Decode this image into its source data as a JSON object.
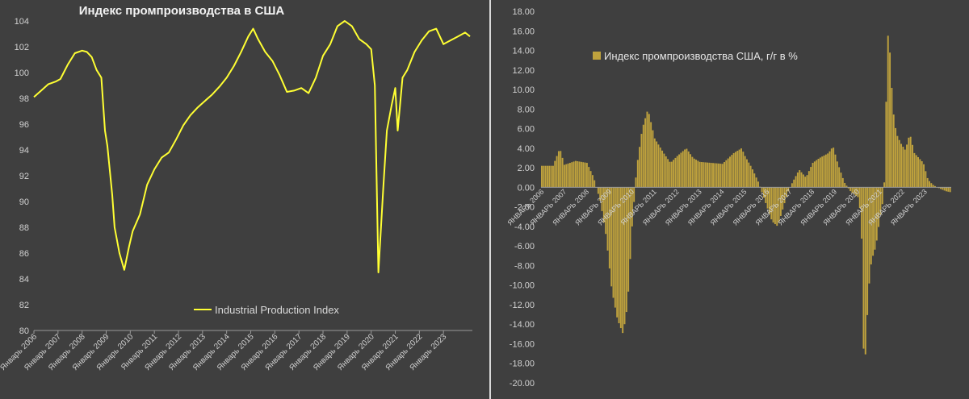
{
  "chart_data": [
    {
      "type": "line",
      "title": "Индекс промпроизводства в США",
      "legend": {
        "label": "Industrial Production Index",
        "position": "bottom-center"
      },
      "grid": false,
      "line_color": "#ffff33",
      "ylim": [
        80,
        104
      ],
      "yticks": [
        "80",
        "82",
        "84",
        "86",
        "88",
        "90",
        "92",
        "94",
        "96",
        "98",
        "100",
        "102",
        "104"
      ],
      "xlim": [
        2006.0,
        2024.2
      ],
      "xticks": [
        "Январь 2006",
        "Январь 2007",
        "Январь 2008",
        "Январь 2009",
        "Январь 2010",
        "Январь 2011",
        "Январь 2012",
        "Январь 2013",
        "Январь 2014",
        "Январь 2015",
        "Январь 2016",
        "Январь 2017",
        "Январь 2018",
        "Январь 2019",
        "Январь 2020",
        "Январь 2021",
        "Январь 2022",
        "Январь 2023"
      ],
      "points": [
        [
          2006.0,
          98.1
        ],
        [
          2006.3,
          98.6
        ],
        [
          2006.6,
          99.1
        ],
        [
          2006.9,
          99.3
        ],
        [
          2007.1,
          99.5
        ],
        [
          2007.4,
          100.6
        ],
        [
          2007.7,
          101.5
        ],
        [
          2008.0,
          101.7
        ],
        [
          2008.2,
          101.6
        ],
        [
          2008.4,
          101.2
        ],
        [
          2008.6,
          100.2
        ],
        [
          2008.8,
          99.6
        ],
        [
          2008.95,
          95.5
        ],
        [
          2009.05,
          94.3
        ],
        [
          2009.25,
          90.5
        ],
        [
          2009.35,
          88.0
        ],
        [
          2009.55,
          86.0
        ],
        [
          2009.75,
          84.7
        ],
        [
          2009.95,
          86.5
        ],
        [
          2010.1,
          87.7
        ],
        [
          2010.4,
          89.0
        ],
        [
          2010.7,
          91.3
        ],
        [
          2011.0,
          92.5
        ],
        [
          2011.3,
          93.4
        ],
        [
          2011.6,
          93.8
        ],
        [
          2011.9,
          94.8
        ],
        [
          2012.2,
          95.9
        ],
        [
          2012.5,
          96.7
        ],
        [
          2012.8,
          97.3
        ],
        [
          2013.1,
          97.8
        ],
        [
          2013.4,
          98.3
        ],
        [
          2013.7,
          98.9
        ],
        [
          2014.0,
          99.6
        ],
        [
          2014.3,
          100.5
        ],
        [
          2014.6,
          101.6
        ],
        [
          2014.9,
          102.8
        ],
        [
          2015.1,
          103.4
        ],
        [
          2015.3,
          102.6
        ],
        [
          2015.6,
          101.6
        ],
        [
          2015.9,
          100.9
        ],
        [
          2016.2,
          99.8
        ],
        [
          2016.5,
          98.5
        ],
        [
          2016.8,
          98.6
        ],
        [
          2017.1,
          98.8
        ],
        [
          2017.4,
          98.4
        ],
        [
          2017.7,
          99.6
        ],
        [
          2018.0,
          101.3
        ],
        [
          2018.3,
          102.2
        ],
        [
          2018.6,
          103.6
        ],
        [
          2018.9,
          104.0
        ],
        [
          2019.2,
          103.6
        ],
        [
          2019.5,
          102.6
        ],
        [
          2019.8,
          102.2
        ],
        [
          2020.0,
          101.8
        ],
        [
          2020.15,
          99.0
        ],
        [
          2020.3,
          84.5
        ],
        [
          2020.5,
          91.0
        ],
        [
          2020.65,
          95.5
        ],
        [
          2020.85,
          97.5
        ],
        [
          2021.0,
          98.8
        ],
        [
          2021.1,
          95.5
        ],
        [
          2021.3,
          99.6
        ],
        [
          2021.5,
          100.2
        ],
        [
          2021.8,
          101.6
        ],
        [
          2022.1,
          102.5
        ],
        [
          2022.4,
          103.2
        ],
        [
          2022.7,
          103.4
        ],
        [
          2023.0,
          102.2
        ],
        [
          2023.3,
          102.5
        ],
        [
          2023.6,
          102.8
        ],
        [
          2023.9,
          103.1
        ],
        [
          2024.1,
          102.8
        ]
      ]
    },
    {
      "type": "bar",
      "legend": {
        "label": "Индекс промпроизводства США, г/г в %",
        "position": "top-left"
      },
      "grid": false,
      "bar_color": "#bfa23d",
      "ylim": [
        -20,
        18
      ],
      "yticks": [
        "-20.00",
        "-18.00",
        "-16.00",
        "-14.00",
        "-12.00",
        "-10.00",
        "-8.00",
        "-6.00",
        "-4.00",
        "-2.00",
        "0.00",
        "2.00",
        "4.00",
        "6.00",
        "8.00",
        "10.00",
        "12.00",
        "14.00",
        "16.00",
        "18.00"
      ],
      "xlim": [
        2006.0,
        2024.2
      ],
      "xticks": [
        "ЯНВАРЬ 2006",
        "ЯНВАРЬ 2007",
        "ЯНВАРЬ 2008",
        "ЯНВАРЬ 2009",
        "ЯНВАРЬ 2010",
        "ЯНВАРЬ 2011",
        "ЯНВАРЬ 2012",
        "ЯНВАРЬ 2013",
        "ЯНВАРЬ 2014",
        "ЯНВАРЬ 2015",
        "ЯНВАРЬ 2016",
        "ЯНВАРЬ 2017",
        "ЯНВАРЬ 2018",
        "ЯНВАРЬ 2019",
        "ЯНВАРЬ 2020",
        "ЯНВАРЬ 2021",
        "ЯНВАРЬ 2022",
        "ЯНВАРЬ 2023"
      ],
      "anchors": [
        [
          2006.0,
          2.2
        ],
        [
          2006.5,
          2.2
        ],
        [
          2006.8,
          4.0
        ],
        [
          2007.0,
          2.3
        ],
        [
          2007.5,
          2.7
        ],
        [
          2008.0,
          2.5
        ],
        [
          2008.3,
          1.0
        ],
        [
          2008.6,
          -1.5
        ],
        [
          2008.85,
          -5.0
        ],
        [
          2009.1,
          -10.5
        ],
        [
          2009.35,
          -13.5
        ],
        [
          2009.6,
          -15.0
        ],
        [
          2009.8,
          -12.0
        ],
        [
          2010.0,
          -4.0
        ],
        [
          2010.2,
          2.0
        ],
        [
          2010.45,
          6.0
        ],
        [
          2010.7,
          8.0
        ],
        [
          2011.0,
          5.0
        ],
        [
          2011.4,
          3.5
        ],
        [
          2011.7,
          2.5
        ],
        [
          2012.0,
          3.2
        ],
        [
          2012.4,
          4.0
        ],
        [
          2012.7,
          3.0
        ],
        [
          2013.0,
          2.6
        ],
        [
          2013.5,
          2.5
        ],
        [
          2014.0,
          2.4
        ],
        [
          2014.5,
          3.5
        ],
        [
          2014.85,
          4.0
        ],
        [
          2015.0,
          3.2
        ],
        [
          2015.3,
          2.0
        ],
        [
          2015.6,
          0.5
        ],
        [
          2015.9,
          -1.5
        ],
        [
          2016.2,
          -3.5
        ],
        [
          2016.45,
          -4.0
        ],
        [
          2016.7,
          -2.0
        ],
        [
          2016.9,
          -0.5
        ],
        [
          2017.1,
          0.5
        ],
        [
          2017.4,
          1.8
        ],
        [
          2017.7,
          1.0
        ],
        [
          2018.0,
          2.5
        ],
        [
          2018.3,
          3.0
        ],
        [
          2018.7,
          3.5
        ],
        [
          2018.9,
          4.2
        ],
        [
          2019.1,
          2.5
        ],
        [
          2019.4,
          0.5
        ],
        [
          2019.7,
          -0.5
        ],
        [
          2020.0,
          -1.0
        ],
        [
          2020.15,
          -3.0
        ],
        [
          2020.25,
          -16.5
        ],
        [
          2020.35,
          -17.2
        ],
        [
          2020.45,
          -11.0
        ],
        [
          2020.6,
          -7.5
        ],
        [
          2020.8,
          -6.0
        ],
        [
          2020.95,
          -3.5
        ],
        [
          2021.1,
          -1.5
        ],
        [
          2021.2,
          1.5
        ],
        [
          2021.3,
          16.0
        ],
        [
          2021.4,
          14.5
        ],
        [
          2021.55,
          8.0
        ],
        [
          2021.7,
          5.5
        ],
        [
          2021.9,
          4.5
        ],
        [
          2022.1,
          3.8
        ],
        [
          2022.3,
          5.5
        ],
        [
          2022.5,
          3.5
        ],
        [
          2022.7,
          3.0
        ],
        [
          2022.9,
          2.5
        ],
        [
          2023.1,
          0.8
        ],
        [
          2023.3,
          0.3
        ],
        [
          2023.5,
          0.0
        ],
        [
          2023.7,
          -0.2
        ],
        [
          2023.9,
          -0.4
        ],
        [
          2024.1,
          -0.5
        ]
      ]
    }
  ]
}
